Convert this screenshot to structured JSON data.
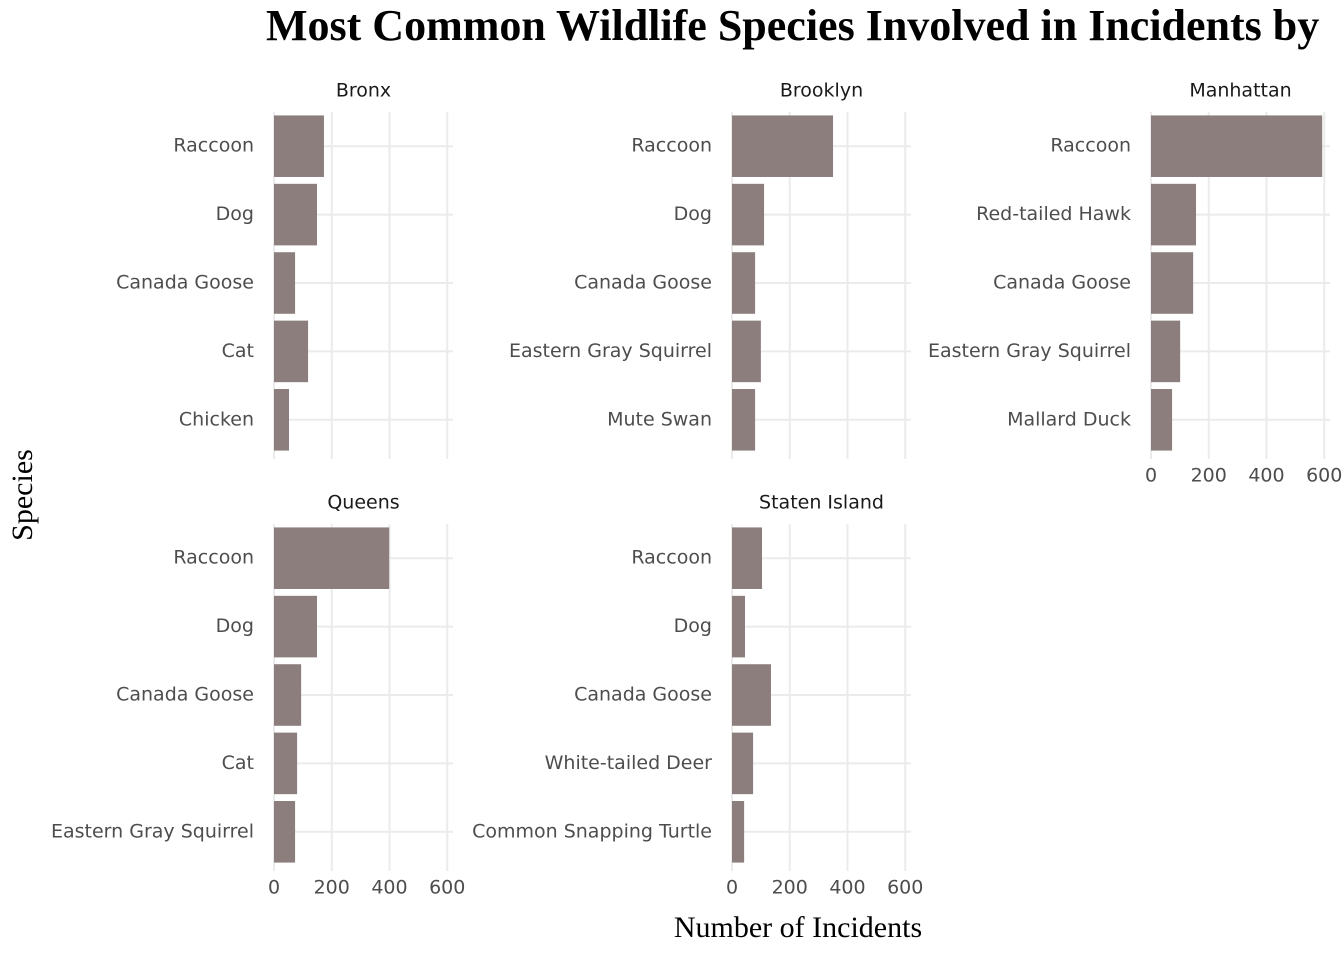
{
  "chart_data": {
    "type": "bar",
    "orientation": "horizontal",
    "title": "Most Common Wildlife Species Involved in Incidents by",
    "x_label": "Number of Incidents",
    "y_label": "Species",
    "color": "#8b7e7c",
    "grid": true,
    "xlim": [
      0,
      620
    ],
    "xticks": [
      0,
      200,
      400,
      600
    ],
    "facets": [
      {
        "name": "Bronx",
        "categories": [
          "Raccoon",
          "Dog",
          "Canada Goose",
          "Cat",
          "Chicken"
        ],
        "values": [
          173,
          149,
          73,
          118,
          52
        ]
      },
      {
        "name": "Brooklyn",
        "categories": [
          "Raccoon",
          "Dog",
          "Canada Goose",
          "Eastern Gray Squirrel",
          "Mute Swan"
        ],
        "values": [
          350,
          111,
          80,
          100,
          80
        ]
      },
      {
        "name": "Manhattan",
        "categories": [
          "Raccoon",
          "Red-tailed Hawk",
          "Canada Goose",
          "Eastern Gray Squirrel",
          "Mallard Duck"
        ],
        "values": [
          593,
          156,
          146,
          101,
          73
        ]
      },
      {
        "name": "Queens",
        "categories": [
          "Raccoon",
          "Dog",
          "Canada Goose",
          "Cat",
          "Eastern Gray Squirrel"
        ],
        "values": [
          399,
          149,
          94,
          80,
          73
        ]
      },
      {
        "name": "Staten Island",
        "categories": [
          "Raccoon",
          "Dog",
          "Canada Goose",
          "White-tailed Deer",
          "Common Snapping Turtle"
        ],
        "values": [
          104,
          45,
          135,
          73,
          42
        ]
      }
    ]
  }
}
